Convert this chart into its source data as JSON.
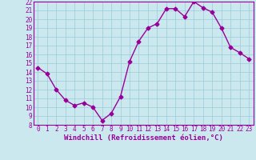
{
  "x": [
    0,
    1,
    2,
    3,
    4,
    5,
    6,
    7,
    8,
    9,
    10,
    11,
    12,
    13,
    14,
    15,
    16,
    17,
    18,
    19,
    20,
    21,
    22,
    23
  ],
  "y": [
    14.5,
    13.8,
    12.0,
    10.8,
    10.2,
    10.5,
    10.0,
    8.5,
    9.3,
    11.2,
    15.2,
    17.5,
    19.0,
    19.5,
    21.2,
    21.2,
    20.3,
    22.0,
    21.3,
    20.8,
    19.0,
    16.8,
    16.2,
    15.5
  ],
  "line_color": "#990099",
  "marker": "D",
  "marker_size": 2.5,
  "bg_color": "#cce8ef",
  "grid_color": "#99ccd9",
  "ylim": [
    8,
    22
  ],
  "yticks": [
    8,
    9,
    10,
    11,
    12,
    13,
    14,
    15,
    16,
    17,
    18,
    19,
    20,
    21,
    22
  ],
  "xticks": [
    0,
    1,
    2,
    3,
    4,
    5,
    6,
    7,
    8,
    9,
    10,
    11,
    12,
    13,
    14,
    15,
    16,
    17,
    18,
    19,
    20,
    21,
    22,
    23
  ],
  "xlabel": "Windchill (Refroidissement éolien,°C)",
  "xlabel_fontsize": 6.5,
  "tick_fontsize": 5.5,
  "line_width": 1.0
}
